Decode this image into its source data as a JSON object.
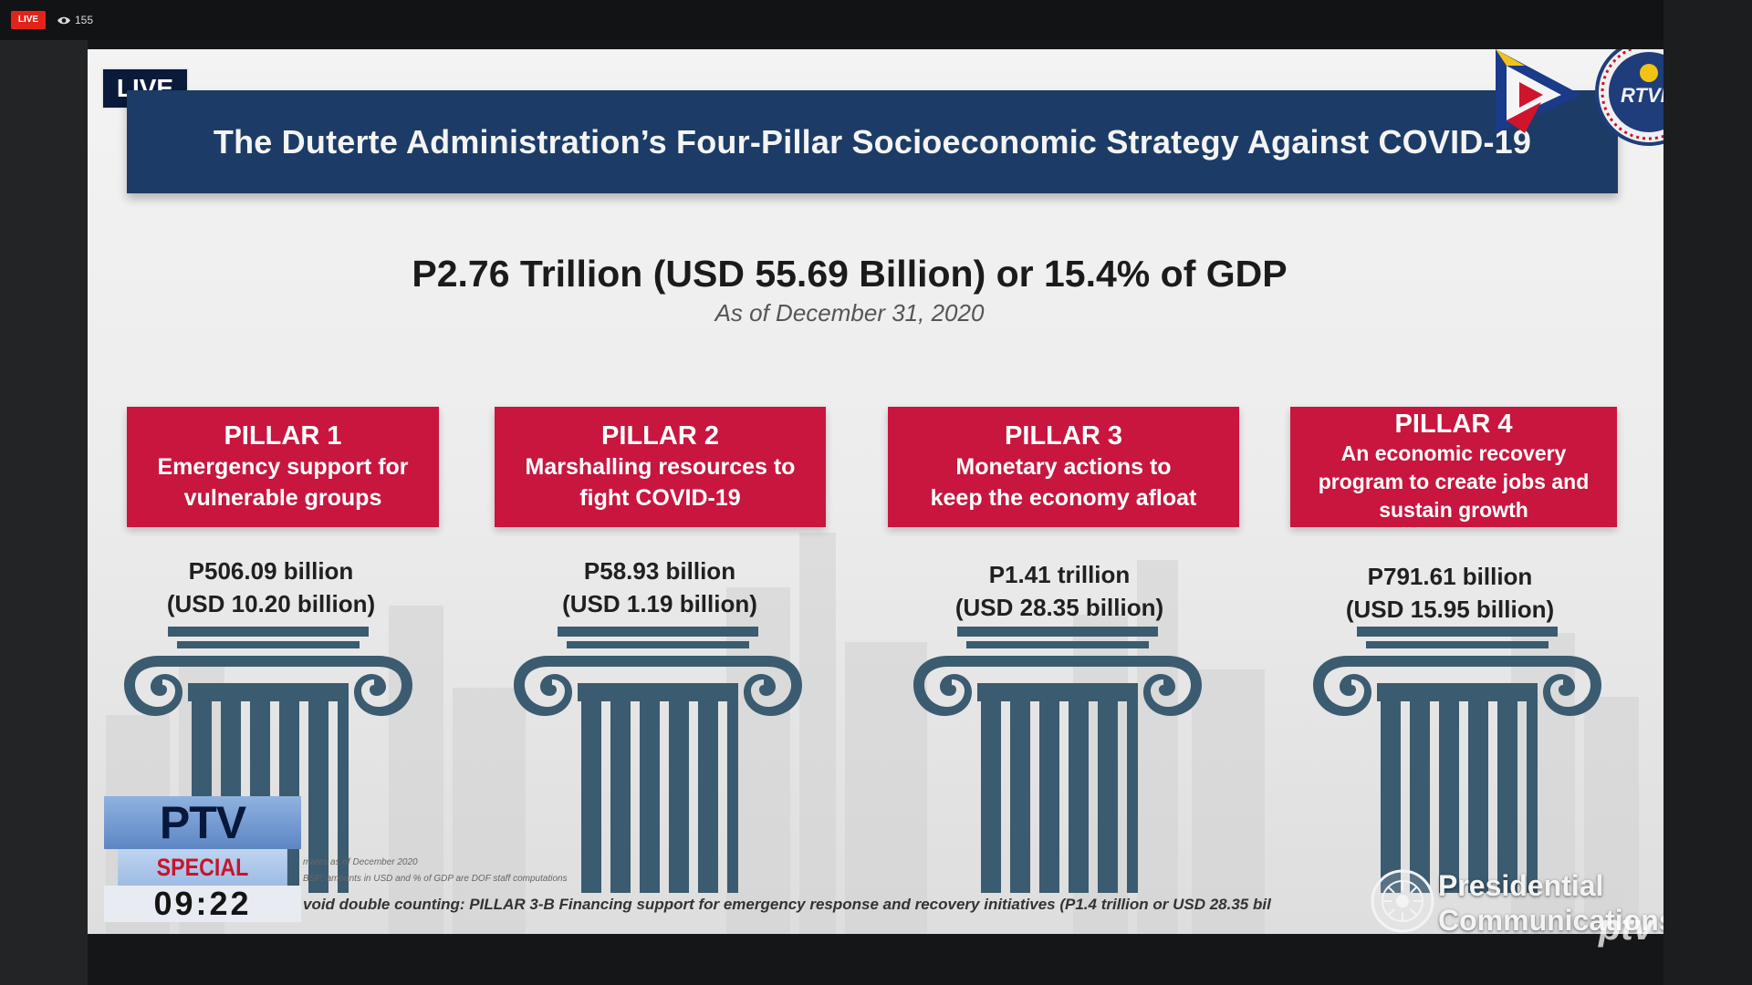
{
  "stream": {
    "live_badge": "LIVE",
    "viewer_count": "155"
  },
  "overlay": {
    "live_tag": "LIVE",
    "coverage_brand": "PTV",
    "coverage_label": "SPECIAL COVERAGE",
    "clock": "09:22",
    "watermark": "ptv"
  },
  "slide": {
    "title": "The Duterte Administration’s Four-Pillar Socioeconomic Strategy Against COVID-19",
    "total": "P2.76 Trillion (USD 55.69 Billion) or 15.4% of GDP",
    "as_of": "As of December 31, 2020",
    "pillars": [
      {
        "heading": "PILLAR 1",
        "description": [
          "Emergency support for",
          "vulnerable groups"
        ],
        "amount": "P506.09 billion",
        "amount_usd": "(USD 10.20 billion)"
      },
      {
        "heading": "PILLAR 2",
        "description": [
          "Marshalling resources to",
          "fight COVID-19"
        ],
        "amount": "P58.93 billion",
        "amount_usd": "(USD 1.19 billion)"
      },
      {
        "heading": "PILLAR 3",
        "description": [
          "Monetary actions to",
          "keep the economy afloat"
        ],
        "amount": "P1.41 trillion",
        "amount_usd": "(USD 28.35 billion)"
      },
      {
        "heading": "PILLAR 4",
        "description": [
          "An economic recovery",
          "program to create jobs and",
          "sustain growth"
        ],
        "amount": "P791.61 billion",
        "amount_usd": "(USD 15.95 billion)"
      }
    ],
    "footnote_1": "mates as of December 2020",
    "footnote_2": "BSP; amounts in USD and % of GDP are DOF staff computations",
    "footnote_3": "void double counting: PILLAR 3-B Financing support for emergency response and recovery initiatives (P1.4 trillion or USD 28.35 bil",
    "publisher_line1": "Presidential",
    "publisher_line2": "Communications"
  },
  "colors": {
    "title_banner": "#1c3c67",
    "pillar_box": "#c8163e",
    "column": "#3b5b70",
    "live_red": "#e2231a"
  },
  "icons": [
    "eye-icon",
    "ptv-logo",
    "rtvm-seal",
    "pco-seal",
    "ionic-column-icon"
  ]
}
